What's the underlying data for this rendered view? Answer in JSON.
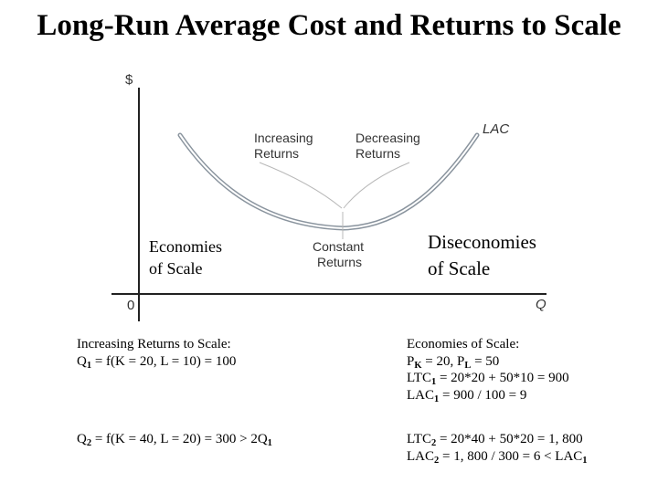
{
  "title": "Long-Run Average Cost and Returns to Scale",
  "chart_data": {
    "type": "line",
    "ylabel": "$",
    "xlabel": "Q",
    "origin_label": "0",
    "series": [
      {
        "name": "LAC"
      }
    ],
    "annotations": {
      "increasing": [
        "Increasing",
        "Returns"
      ],
      "decreasing": [
        "Decreasing",
        "Returns"
      ],
      "constant": [
        "Constant",
        "Returns"
      ]
    },
    "colors": {
      "curve": "#b0b8c0",
      "axis": "#222222",
      "marker": "#888888"
    }
  },
  "labels": {
    "economies": [
      "Economies",
      "of Scale"
    ],
    "diseconomies": [
      "Diseconomies",
      "of Scale"
    ]
  },
  "notes": {
    "increasing_heading": "Increasing Returns to Scale:",
    "q1": {
      "q": "Q",
      "sub": "1",
      "rest": " = f(K = 20, L = 10) = 100"
    },
    "q2": {
      "q": "Q",
      "sub": "2",
      "rest": " = f(K = 40, L = 20) = 300 > 2Q",
      "sub2": "1"
    },
    "economies_heading": "Economies of Scale:",
    "prices": {
      "pk": "P",
      "pk_sub": "K",
      "pk_rest": " = 20, P",
      "pl_sub": "L",
      "pl_rest": " = 50"
    },
    "ltc1": {
      "a": "LTC",
      "sub": "1",
      "rest": " = 20*20 + 50*10 = 900"
    },
    "lac1": {
      "a": "LAC",
      "sub": "1",
      "rest": " = 900 / 100 = 9"
    },
    "ltc2": {
      "a": "LTC",
      "sub": "2",
      "rest": " = 20*40 + 50*20 = 1, 800"
    },
    "lac2": {
      "a": "LAC",
      "sub": "2",
      "rest": " = 1, 800 / 300 = 6 < LAC",
      "sub2": "1"
    }
  }
}
